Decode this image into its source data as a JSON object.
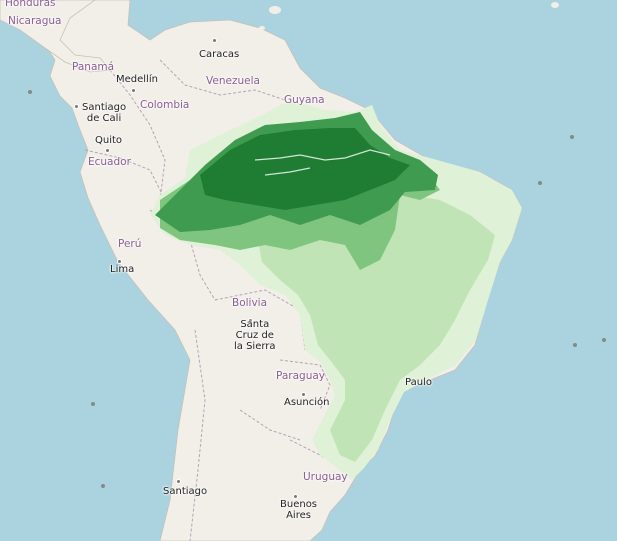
{
  "map": {
    "colors": {
      "ocean": "#aad3df",
      "land": "#f2efe9",
      "border": "#b5a3b8",
      "dense_forest": "#1e7d32",
      "forest": "#3f9b4f",
      "mid_vegetation": "#7fc57f",
      "light_vegetation": "#c1e4b6",
      "sparse_vegetation": "#dff1d6"
    },
    "countries": {
      "honduras": "Honduras",
      "nicaragua": "Nicaragua",
      "panama": "Panamá",
      "venezuela": "Venezuela",
      "colombia": "Colombia",
      "guyana": "Guyana",
      "ecuador": "Ecuador",
      "peru": "Perú",
      "bolivia": "Bolivia",
      "paraguay": "Paraguay",
      "uruguay": "Uruguay"
    },
    "cities": {
      "caracas": "Caracas",
      "medellin": "Medellín",
      "santiago_de_cali": "Santiago de Cali",
      "quito": "Quito",
      "lima": "Lima",
      "santa_cruz": "Santa Cruz de la Sierra",
      "asuncion": "Asunción",
      "sao_paulo": "Paulo",
      "santiago": "Santiago",
      "buenos_aires": "Buenos Aires"
    },
    "city_lines": {
      "santiago_de_cali": [
        "Santiago",
        "de Cali"
      ],
      "santa_cruz": [
        "Santa",
        "Cruz de",
        "la Sierra"
      ],
      "buenos_aires": [
        "Buenos",
        "Aires"
      ]
    }
  }
}
